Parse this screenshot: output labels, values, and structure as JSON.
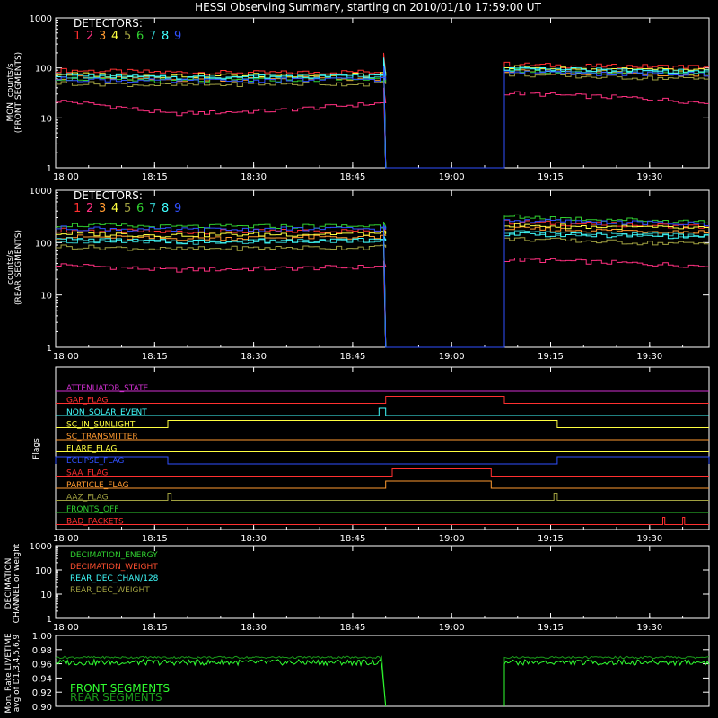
{
  "title": "HESSI Observing Summary, starting on 2010/01/10 17:59:00 UT",
  "chart_data": [
    {
      "id": "front",
      "type": "line",
      "ylabel": [
        "MON. counts/s",
        "(FRONT SEGMENTS)"
      ],
      "yscale": "log",
      "ylim": [
        1,
        1000
      ],
      "yticks": [
        "1",
        "10",
        "100",
        "1000"
      ],
      "xlim": [
        "18:00",
        "19:39"
      ],
      "xticks": [
        "18:00",
        "18:15",
        "18:30",
        "18:45",
        "19:00",
        "19:15",
        "19:30"
      ],
      "legend_title": "DETECTORS:",
      "legend": [
        "1",
        "2",
        "3",
        "4",
        "5",
        "6",
        "7",
        "8",
        "9"
      ],
      "gap": [
        "18:50",
        "19:08"
      ],
      "series": [
        {
          "name": "1",
          "color": "#ff3030",
          "before": [
            90,
            82,
            80,
            85
          ],
          "after": [
            120,
            110,
            108,
            105
          ],
          "spike": 200
        },
        {
          "name": "2",
          "color": "#ff3080",
          "before": [
            22,
            12,
            14,
            20
          ],
          "after": [
            32,
            28,
            25,
            20
          ],
          "spike": 40
        },
        {
          "name": "3",
          "color": "#ff9a30",
          "before": [
            65,
            58,
            62,
            60
          ],
          "after": [
            85,
            80,
            78,
            72
          ],
          "spike": 120
        },
        {
          "name": "4",
          "color": "#ffff40",
          "before": [
            75,
            70,
            72,
            74
          ],
          "after": [
            105,
            95,
            92,
            88
          ],
          "spike": 150
        },
        {
          "name": "5",
          "color": "#a0a040",
          "before": [
            50,
            45,
            48,
            48
          ],
          "after": [
            75,
            68,
            64,
            60
          ],
          "spike": 90
        },
        {
          "name": "6",
          "color": "#30d030",
          "before": [
            62,
            55,
            58,
            60
          ],
          "after": [
            90,
            82,
            80,
            78
          ],
          "spike": 130
        },
        {
          "name": "7",
          "color": "#30c0c0",
          "before": [
            70,
            62,
            66,
            68
          ],
          "after": [
            95,
            88,
            86,
            82
          ],
          "spike": 140
        },
        {
          "name": "8",
          "color": "#40ffff",
          "before": [
            72,
            64,
            68,
            70
          ],
          "after": [
            100,
            92,
            88,
            85
          ],
          "spike": 160
        },
        {
          "name": "9",
          "color": "#3050ff",
          "before": [
            60,
            54,
            57,
            60
          ],
          "after": [
            85,
            78,
            76,
            74
          ],
          "spike": 110
        }
      ]
    },
    {
      "id": "rear",
      "type": "line",
      "ylabel": [
        "counts/s",
        "(REAR SEGMENTS)"
      ],
      "yscale": "log",
      "ylim": [
        1,
        1000
      ],
      "yticks": [
        "1",
        "10",
        "100",
        "1000"
      ],
      "xlim": [
        "18:00",
        "19:39"
      ],
      "xticks": [
        "18:00",
        "18:15",
        "18:30",
        "18:45",
        "19:00",
        "19:15",
        "19:30"
      ],
      "legend_title": "DETECTORS:",
      "legend": [
        "1",
        "2",
        "3",
        "4",
        "5",
        "6",
        "7",
        "8",
        "9"
      ],
      "gap": [
        "18:50",
        "19:08"
      ],
      "series": [
        {
          "name": "1",
          "color": "#ff3030",
          "before": [
            175,
            160,
            165,
            170
          ],
          "after": [
            250,
            230,
            220,
            200
          ],
          "spike": 200
        },
        {
          "name": "2",
          "color": "#ff3080",
          "before": [
            38,
            30,
            32,
            35
          ],
          "after": [
            48,
            44,
            40,
            36
          ],
          "spike": 45
        },
        {
          "name": "3",
          "color": "#ff9a30",
          "before": [
            130,
            120,
            125,
            128
          ],
          "after": [
            185,
            175,
            168,
            160
          ],
          "spike": 150
        },
        {
          "name": "4",
          "color": "#ffff40",
          "before": [
            150,
            140,
            145,
            150
          ],
          "after": [
            215,
            205,
            195,
            185
          ],
          "spike": 180
        },
        {
          "name": "5",
          "color": "#a0a040",
          "before": [
            85,
            75,
            80,
            82
          ],
          "after": [
            120,
            110,
            100,
            95
          ],
          "spike": 100
        },
        {
          "name": "6",
          "color": "#30d030",
          "before": [
            220,
            200,
            205,
            210
          ],
          "after": [
            320,
            290,
            270,
            250
          ],
          "spike": 250
        },
        {
          "name": "7",
          "color": "#30c0c0",
          "before": [
            110,
            100,
            105,
            108
          ],
          "after": [
            160,
            150,
            145,
            140
          ],
          "spike": 130
        },
        {
          "name": "8",
          "color": "#40ffff",
          "before": [
            115,
            105,
            110,
            112
          ],
          "after": [
            150,
            140,
            135,
            130
          ],
          "spike": 140
        },
        {
          "name": "9",
          "color": "#3050ff",
          "before": [
            190,
            175,
            180,
            185
          ],
          "after": [
            270,
            250,
            240,
            225
          ],
          "spike": 220
        }
      ]
    },
    {
      "id": "flags",
      "type": "line",
      "ylabel": [
        "Flags"
      ],
      "xlim": [
        "18:00",
        "19:39"
      ],
      "xticks": [
        "18:00",
        "18:15",
        "18:30",
        "18:45",
        "19:00",
        "19:15",
        "19:30"
      ],
      "flags": [
        {
          "name": "ATTENUATOR_STATE",
          "color": "#d030d0",
          "high": []
        },
        {
          "name": "GAP_FLAG",
          "color": "#ff3030",
          "high": [
            [
              "18:50",
              "19:08"
            ]
          ]
        },
        {
          "name": "NON_SOLAR_EVENT",
          "color": "#40ffff",
          "high": [
            [
              "18:49",
              "18:50"
            ]
          ]
        },
        {
          "name": "SC_IN_SUNLIGHT",
          "color": "#ffff40",
          "high": [
            [
              "18:17",
              "19:16"
            ]
          ]
        },
        {
          "name": "SC_TRANSMITTER",
          "color": "#ff9a30",
          "high": []
        },
        {
          "name": "FLARE_FLAG",
          "color": "#ffff40",
          "high": []
        },
        {
          "name": "ECLIPSE_FLAG",
          "color": "#3050ff",
          "high": [
            [
              "18:00",
              "18:17"
            ],
            [
              "19:16",
              "19:39"
            ]
          ]
        },
        {
          "name": "SAA_FLAG",
          "color": "#ff3030",
          "high": [
            [
              "18:51",
              "19:06"
            ]
          ]
        },
        {
          "name": "PARTICLE_FLAG",
          "color": "#ff9a30",
          "high": [
            [
              "18:50",
              "19:06"
            ]
          ]
        },
        {
          "name": "AAZ_FLAG",
          "color": "#a0a040",
          "high": [
            [
              "18:17",
              "18:17.5"
            ],
            [
              "19:15.5",
              "19:16"
            ]
          ]
        },
        {
          "name": "FRONTS_OFF",
          "color": "#30d030",
          "high": []
        },
        {
          "name": "BAD_PACKETS",
          "color": "#ff3030",
          "high": [
            [
              "19:32",
              "19:32.3"
            ],
            [
              "19:35",
              "19:35.3"
            ]
          ]
        }
      ]
    },
    {
      "id": "decimation",
      "type": "line",
      "ylabel": [
        "DECIMATION",
        "CHANNEL or weight"
      ],
      "yscale": "log",
      "ylim": [
        1,
        1000
      ],
      "yticks": [
        "1",
        "10",
        "100",
        "1000"
      ],
      "xlim": [
        "18:00",
        "19:39"
      ],
      "xticks": [
        "18:00",
        "18:15",
        "18:30",
        "18:45",
        "19:00",
        "19:15",
        "19:30"
      ],
      "legend": [
        {
          "name": "DECIMATION_ENERGY",
          "color": "#30d030"
        },
        {
          "name": "DECIMATION_WEIGHT",
          "color": "#ff5030"
        },
        {
          "name": "REAR_DEC_CHAN/128",
          "color": "#40ffff"
        },
        {
          "name": "REAR_DEC_WEIGHT",
          "color": "#a0a040"
        }
      ]
    },
    {
      "id": "livetime",
      "type": "line",
      "ylabel": [
        "Mon. Rate LIVETIME",
        "avg of D1,3,4,5,6,9"
      ],
      "ylim": [
        0.9,
        1.0
      ],
      "yticks": [
        "0.90",
        "0.92",
        "0.94",
        "0.96",
        "0.98",
        "1.00"
      ],
      "xlim": [
        "18:00",
        "19:39"
      ],
      "gap": [
        "18:50",
        "19:08"
      ],
      "legend": [
        {
          "name": "FRONT SEGMENTS",
          "color": "#30ff30"
        },
        {
          "name": "REAR SEGMENTS",
          "color": "#1a9a1a"
        }
      ],
      "series": [
        {
          "name": "FRONT SEGMENTS",
          "color": "#30ff30",
          "level": 0.962
        },
        {
          "name": "REAR SEGMENTS",
          "color": "#1a9a1a",
          "level": 0.969
        }
      ]
    }
  ]
}
